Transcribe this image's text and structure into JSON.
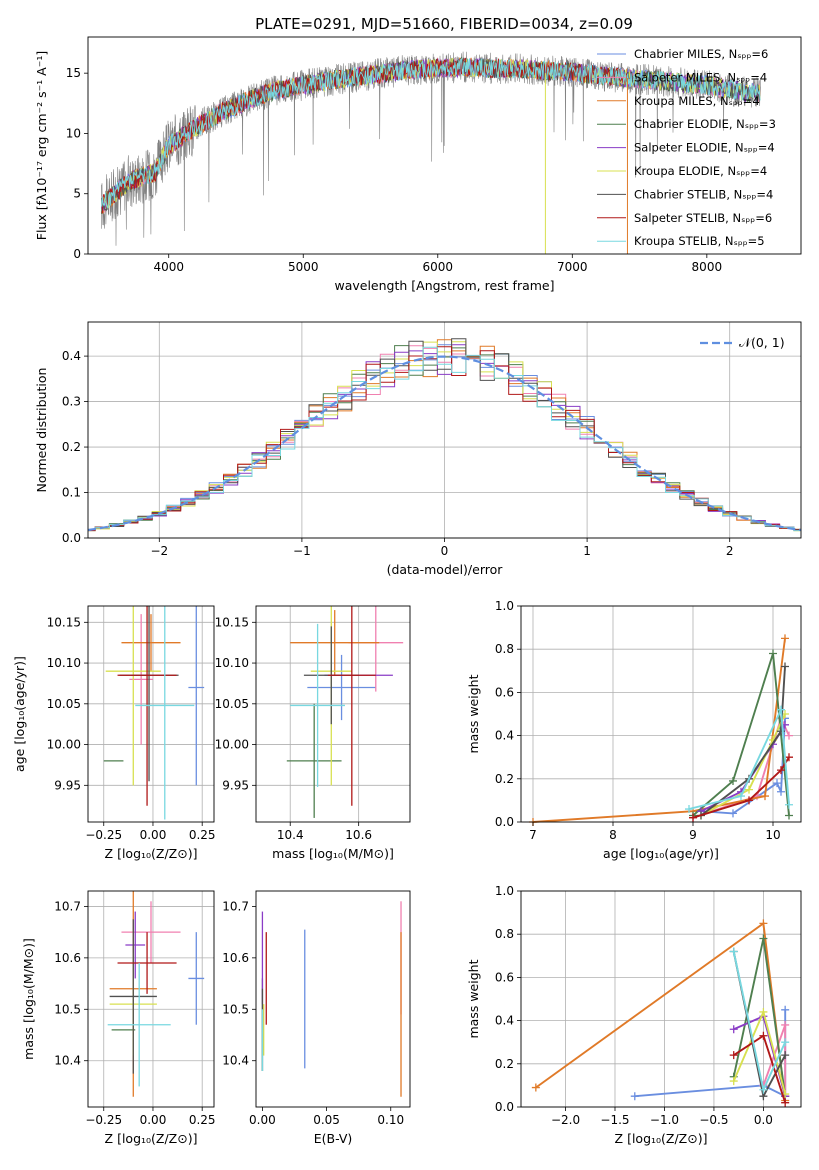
{
  "figure_title": "PLATE=0291, MJD=51660, FIBERID=0034, z=0.09",
  "colors": {
    "Chabrier MILES": "#6a8ee0",
    "Salpeter MILES": "#f080b0",
    "Kroupa MILES": "#e07a28",
    "Chabrier ELODIE": "#4f7f4f",
    "Salpeter ELODIE": "#8a3cc6",
    "Kroupa ELODIE": "#d8e050",
    "Chabrier STELIB": "#505050",
    "Salpeter STELIB": "#b01818",
    "Kroupa STELIB": "#78d8e0",
    "data": "#808080",
    "normal": "#5f8fe0"
  },
  "chart_data": [
    {
      "type": "line",
      "xlabel": "wavelength [Angstrom, rest frame]",
      "ylabel": "Flux [fλ10⁻¹⁷ erg cm⁻² s⁻¹ A⁻¹]",
      "xlim": [
        3400,
        8700
      ],
      "ylim": [
        0,
        18
      ],
      "xticks": [
        "4000",
        "5000",
        "6000",
        "7000",
        "8000"
      ],
      "yticks": [
        "0",
        "5",
        "10",
        "15"
      ],
      "grid": false,
      "legend_position": "right",
      "legend": [
        "Chabrier MILES, Nₛₚₚ=6",
        "Salpeter MILES, Nₛₚₚ=4",
        "Kroupa MILES, Nₛₚₚ=4",
        "Chabrier ELODIE, Nₛₚₚ=3",
        "Salpeter ELODIE, Nₛₚₚ=4",
        "Kroupa ELODIE, Nₛₚₚ=4",
        "Chabrier STELIB, Nₛₚₚ=4",
        "Salpeter STELIB, Nₛₚₚ=6",
        "Kroupa STELIB, Nₛₚₚ=5"
      ],
      "continuum": {
        "x": [
          3500,
          3700,
          3900,
          4000,
          4200,
          4400,
          4600,
          4800,
          5000,
          5200,
          5400,
          5600,
          5800,
          6000,
          6200,
          6400,
          6600,
          6800,
          7000,
          7200,
          7400,
          7600,
          7800,
          8000,
          8200,
          8300
        ],
        "y": [
          4.0,
          6.0,
          6.8,
          9.0,
          10.5,
          11.8,
          12.8,
          13.6,
          14.0,
          14.4,
          14.7,
          15.0,
          15.3,
          15.4,
          15.5,
          15.4,
          15.4,
          15.2,
          15.1,
          14.8,
          14.6,
          14.4,
          14.2,
          14.0,
          13.6,
          13.4
        ]
      }
    },
    {
      "type": "line",
      "xlabel": "(data-model)/error",
      "ylabel": "Normed distribution",
      "xlim": [
        -2.5,
        2.5
      ],
      "ylim": [
        0,
        0.475
      ],
      "xticks": [
        "−2",
        "−1",
        "0",
        "1",
        "2"
      ],
      "yticks": [
        "0.0",
        "0.1",
        "0.2",
        "0.3",
        "0.4"
      ],
      "grid": true,
      "legend_position": "top-right",
      "legend": [
        "𝒩(0, 1)"
      ],
      "bin_width": 0.1
    },
    {
      "type": "scatter",
      "xlabel": "Z [log₁₀(Z/Z⊙)]",
      "ylabel": "age  [log₁₀(age/yr)]",
      "xlim": [
        -0.33,
        0.31
      ],
      "ylim": [
        9.905,
        10.17
      ],
      "xticks": [
        "−0.25",
        "0.00",
        "0.25"
      ],
      "yticks": [
        "9.95",
        "10.00",
        "10.05",
        "10.10",
        "10.15"
      ],
      "grid": true,
      "points": [
        {
          "model": "Chabrier MILES",
          "x": 0.22,
          "y": 10.07,
          "xerr": 0.04,
          "yerr": 0.12
        },
        {
          "model": "Salpeter MILES",
          "x": -0.06,
          "y": 10.08,
          "xerr": 0.06,
          "yerr": 0.08
        },
        {
          "model": "Kroupa MILES",
          "x": -0.01,
          "y": 10.125,
          "xerr": 0.15,
          "yerr": 0.035
        },
        {
          "model": "Chabrier ELODIE",
          "x": -0.2,
          "y": 9.98,
          "xerr": 0.05,
          "yerr": 0.0
        },
        {
          "model": "Salpeter ELODIE",
          "x": -0.06,
          "y": 10.085,
          "xerr": 0.05,
          "yerr": 0.0
        },
        {
          "model": "Kroupa ELODIE",
          "x": -0.1,
          "y": 10.09,
          "xerr": 0.14,
          "yerr": 0.14
        },
        {
          "model": "Chabrier STELIB",
          "x": -0.02,
          "y": 10.085,
          "xerr": 0.15,
          "yerr": 0.13
        },
        {
          "model": "Salpeter STELIB",
          "x": -0.03,
          "y": 10.085,
          "xerr": 0.15,
          "yerr": 0.16
        },
        {
          "model": "Kroupa STELIB",
          "x": 0.06,
          "y": 10.048,
          "xerr": 0.15,
          "yerr": 0.14
        }
      ]
    },
    {
      "type": "scatter",
      "xlabel": "mass [log₁₀(M/M⊙)]",
      "ylabel": "",
      "xlim": [
        10.3,
        10.75
      ],
      "ylim": [
        9.905,
        10.17
      ],
      "xticks": [
        "10.4",
        "10.6"
      ],
      "yticks": [
        "9.95",
        "10.00",
        "10.05",
        "10.10",
        "10.15"
      ],
      "grid": true,
      "points": [
        {
          "model": "Chabrier MILES",
          "x": 10.55,
          "y": 10.07,
          "xerr": 0.1,
          "yerr": 0.04
        },
        {
          "model": "Salpeter MILES",
          "x": 10.65,
          "y": 10.125,
          "xerr": 0.08,
          "yerr": 0.06
        },
        {
          "model": "Kroupa MILES",
          "x": 10.53,
          "y": 10.125,
          "xerr": 0.13,
          "yerr": 0.04
        },
        {
          "model": "Chabrier ELODIE",
          "x": 10.47,
          "y": 9.98,
          "xerr": 0.08,
          "yerr": 0.07
        },
        {
          "model": "Salpeter ELODIE",
          "x": 10.6,
          "y": 10.085,
          "xerr": 0.1,
          "yerr": 0.0
        },
        {
          "model": "Kroupa ELODIE",
          "x": 10.52,
          "y": 10.09,
          "xerr": 0.06,
          "yerr": 0.14
        },
        {
          "model": "Chabrier STELIB",
          "x": 10.52,
          "y": 10.085,
          "xerr": 0.08,
          "yerr": 0.06
        },
        {
          "model": "Salpeter STELIB",
          "x": 10.58,
          "y": 10.085,
          "xerr": 0.07,
          "yerr": 0.16
        },
        {
          "model": "Kroupa STELIB",
          "x": 10.48,
          "y": 10.048,
          "xerr": 0.08,
          "yerr": 0.1
        }
      ]
    },
    {
      "type": "line",
      "xlabel": "age  [log₁₀(age/yr)]",
      "ylabel": "mass weight",
      "xlim": [
        6.85,
        10.35
      ],
      "ylim": [
        0,
        1
      ],
      "xticks": [
        "7",
        "8",
        "9",
        "10"
      ],
      "yticks": [
        "0.0",
        "0.2",
        "0.4",
        "0.6",
        "0.8",
        "1.0"
      ],
      "grid": true,
      "series": [
        {
          "model": "Chabrier MILES",
          "x": [
            9.1,
            9.5,
            10.05,
            10.1,
            10.15
          ],
          "y": [
            0.05,
            0.04,
            0.18,
            0.14,
            0.48
          ]
        },
        {
          "model": "Salpeter MILES",
          "x": [
            9.0,
            9.8,
            10.1,
            10.2
          ],
          "y": [
            0.02,
            0.12,
            0.48,
            0.4
          ]
        },
        {
          "model": "Kroupa MILES",
          "x": [
            7.0,
            9.0,
            9.9,
            10.15
          ],
          "y": [
            0.0,
            0.05,
            0.12,
            0.85
          ]
        },
        {
          "model": "Chabrier ELODIE",
          "x": [
            9.0,
            9.5,
            10.0,
            10.2
          ],
          "y": [
            0.03,
            0.19,
            0.78,
            0.03
          ]
        },
        {
          "model": "Salpeter ELODIE",
          "x": [
            9.1,
            9.6,
            10.0,
            10.15
          ],
          "y": [
            0.05,
            0.14,
            0.36,
            0.45
          ]
        },
        {
          "model": "Kroupa ELODIE",
          "x": [
            9.1,
            9.7,
            10.0,
            10.15
          ],
          "y": [
            0.03,
            0.15,
            0.38,
            0.5
          ]
        },
        {
          "model": "Chabrier STELIB",
          "x": [
            9.1,
            9.7,
            10.1,
            10.15
          ],
          "y": [
            0.03,
            0.2,
            0.42,
            0.72
          ]
        },
        {
          "model": "Salpeter STELIB",
          "x": [
            9.0,
            9.7,
            10.1,
            10.2
          ],
          "y": [
            0.02,
            0.1,
            0.24,
            0.3
          ]
        },
        {
          "model": "Kroupa STELIB",
          "x": [
            8.95,
            9.6,
            10.1,
            10.2
          ],
          "y": [
            0.06,
            0.12,
            0.52,
            0.08
          ]
        }
      ]
    },
    {
      "type": "scatter",
      "xlabel": "Z [log₁₀(Z/Z⊙)]",
      "ylabel": "mass [log₁₀(M/M⊙)]",
      "xlim": [
        -0.33,
        0.31
      ],
      "ylim": [
        10.31,
        10.73
      ],
      "xticks": [
        "−0.25",
        "0.00",
        "0.25"
      ],
      "yticks": [
        "10.4",
        "10.5",
        "10.6",
        "10.7"
      ],
      "grid": true,
      "points": [
        {
          "model": "Chabrier MILES",
          "x": 0.22,
          "y": 10.56,
          "xerr": 0.04,
          "yerr": 0.09
        },
        {
          "model": "Salpeter MILES",
          "x": -0.01,
          "y": 10.65,
          "xerr": 0.15,
          "yerr": 0.06
        },
        {
          "model": "Kroupa MILES",
          "x": -0.1,
          "y": 10.54,
          "xerr": 0.12,
          "yerr": 0.21
        },
        {
          "model": "Chabrier ELODIE",
          "x": -0.15,
          "y": 10.46,
          "xerr": 0.06,
          "yerr": 0.0
        },
        {
          "model": "Salpeter ELODIE",
          "x": -0.09,
          "y": 10.625,
          "xerr": 0.05,
          "yerr": 0.065
        },
        {
          "model": "Kroupa ELODIE",
          "x": -0.1,
          "y": 10.51,
          "xerr": 0.12,
          "yerr": 0.1
        },
        {
          "model": "Chabrier STELIB",
          "x": -0.1,
          "y": 10.525,
          "xerr": 0.12,
          "yerr": 0.15
        },
        {
          "model": "Salpeter STELIB",
          "x": -0.03,
          "y": 10.59,
          "xerr": 0.15,
          "yerr": 0.06
        },
        {
          "model": "Kroupa STELIB",
          "x": -0.07,
          "y": 10.47,
          "xerr": 0.16,
          "yerr": 0.12
        }
      ]
    },
    {
      "type": "scatter",
      "xlabel": "E(B-V)",
      "ylabel": "",
      "xlim": [
        -0.005,
        0.115
      ],
      "ylim": [
        10.31,
        10.73
      ],
      "xticks": [
        "0.00",
        "0.05",
        "0.10"
      ],
      "yticks": [
        "10.4",
        "10.5",
        "10.6",
        "10.7"
      ],
      "grid": false,
      "points": [
        {
          "model": "Chabrier MILES",
          "x": 0.033,
          "y": 10.52,
          "xerr": 0,
          "yerr": 0.135
        },
        {
          "model": "Salpeter MILES",
          "x": 0.108,
          "y": 10.6,
          "xerr": 0,
          "yerr": 0.11
        },
        {
          "model": "Kroupa MILES",
          "x": 0.108,
          "y": 10.49,
          "xerr": 0,
          "yerr": 0.16
        },
        {
          "model": "Chabrier ELODIE",
          "x": 0.0,
          "y": 10.47,
          "xerr": 0,
          "yerr": 0.09
        },
        {
          "model": "Salpeter ELODIE",
          "x": 0.0,
          "y": 10.6,
          "xerr": 0,
          "yerr": 0.09
        },
        {
          "model": "Kroupa ELODIE",
          "x": 0.001,
          "y": 10.46,
          "xerr": 0,
          "yerr": 0.05
        },
        {
          "model": "Chabrier STELIB",
          "x": 0.0,
          "y": 10.46,
          "xerr": 0,
          "yerr": 0.08
        },
        {
          "model": "Salpeter STELIB",
          "x": 0.003,
          "y": 10.56,
          "xerr": 0,
          "yerr": 0.09
        },
        {
          "model": "Kroupa STELIB",
          "x": 0.0,
          "y": 10.44,
          "xerr": 0,
          "yerr": 0.06
        }
      ]
    },
    {
      "type": "line",
      "xlabel": "Z [log₁₀(Z/Z⊙)]",
      "ylabel": "mass weight",
      "xlim": [
        -2.45,
        0.38
      ],
      "ylim": [
        0,
        1
      ],
      "xticks": [
        "−2.0",
        "−1.5",
        "−1.0",
        "−0.5",
        "0.0"
      ],
      "yticks": [
        "0.0",
        "0.2",
        "0.4",
        "0.6",
        "0.8",
        "1.0"
      ],
      "grid": true,
      "series": [
        {
          "model": "Chabrier MILES",
          "x": [
            -1.3,
            0.0,
            0.22,
            0.22
          ],
          "y": [
            0.05,
            0.1,
            0.05,
            0.45
          ]
        },
        {
          "model": "Salpeter MILES",
          "x": [
            0.0,
            0.22,
            0.22
          ],
          "y": [
            0.1,
            0.38,
            0.05
          ]
        },
        {
          "model": "Kroupa MILES",
          "x": [
            -2.3,
            0.0,
            0.22
          ],
          "y": [
            0.09,
            0.85,
            0.03
          ]
        },
        {
          "model": "Chabrier ELODIE",
          "x": [
            -0.3,
            0.0,
            0.22
          ],
          "y": [
            0.14,
            0.78,
            0.05
          ]
        },
        {
          "model": "Salpeter ELODIE",
          "x": [
            -0.3,
            0.0,
            0.22
          ],
          "y": [
            0.36,
            0.42,
            0.05
          ]
        },
        {
          "model": "Kroupa ELODIE",
          "x": [
            -0.3,
            0.0,
            0.22
          ],
          "y": [
            0.12,
            0.44,
            0.06
          ]
        },
        {
          "model": "Chabrier STELIB",
          "x": [
            -0.3,
            0.0,
            0.22
          ],
          "y": [
            0.72,
            0.05,
            0.24
          ]
        },
        {
          "model": "Salpeter STELIB",
          "x": [
            -0.3,
            0.0,
            0.22
          ],
          "y": [
            0.24,
            0.33,
            0.02
          ]
        },
        {
          "model": "Kroupa STELIB",
          "x": [
            -0.3,
            0.0,
            0.22
          ],
          "y": [
            0.72,
            0.08,
            0.3
          ]
        }
      ]
    }
  ]
}
